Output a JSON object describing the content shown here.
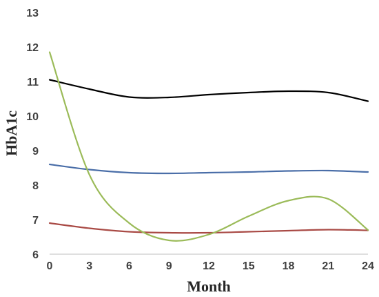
{
  "chart_data": {
    "type": "line",
    "title": "",
    "xlabel": "Month",
    "ylabel": "HbA1c",
    "xlim": [
      0,
      24
    ],
    "ylim": [
      6,
      13
    ],
    "xticks": [
      0,
      3,
      6,
      9,
      12,
      15,
      18,
      21,
      24
    ],
    "yticks": [
      6,
      7,
      8,
      9,
      10,
      11,
      12,
      13
    ],
    "grid": false,
    "legend": "none",
    "x": [
      0,
      3,
      6,
      9,
      12,
      15,
      18,
      21,
      24
    ],
    "series": [
      {
        "color": "#000000",
        "values": [
          11.05,
          10.78,
          10.55,
          10.54,
          10.62,
          10.68,
          10.72,
          10.68,
          10.43
        ]
      },
      {
        "color": "#4a6ea8",
        "values": [
          8.6,
          8.45,
          8.36,
          8.34,
          8.36,
          8.38,
          8.41,
          8.42,
          8.38
        ]
      },
      {
        "color": "#a94a45",
        "values": [
          6.9,
          6.75,
          6.65,
          6.62,
          6.62,
          6.65,
          6.68,
          6.71,
          6.69
        ]
      },
      {
        "color": "#9bbb59",
        "values": [
          11.85,
          8.3,
          6.9,
          6.4,
          6.57,
          7.1,
          7.55,
          7.6,
          6.7
        ]
      }
    ]
  }
}
